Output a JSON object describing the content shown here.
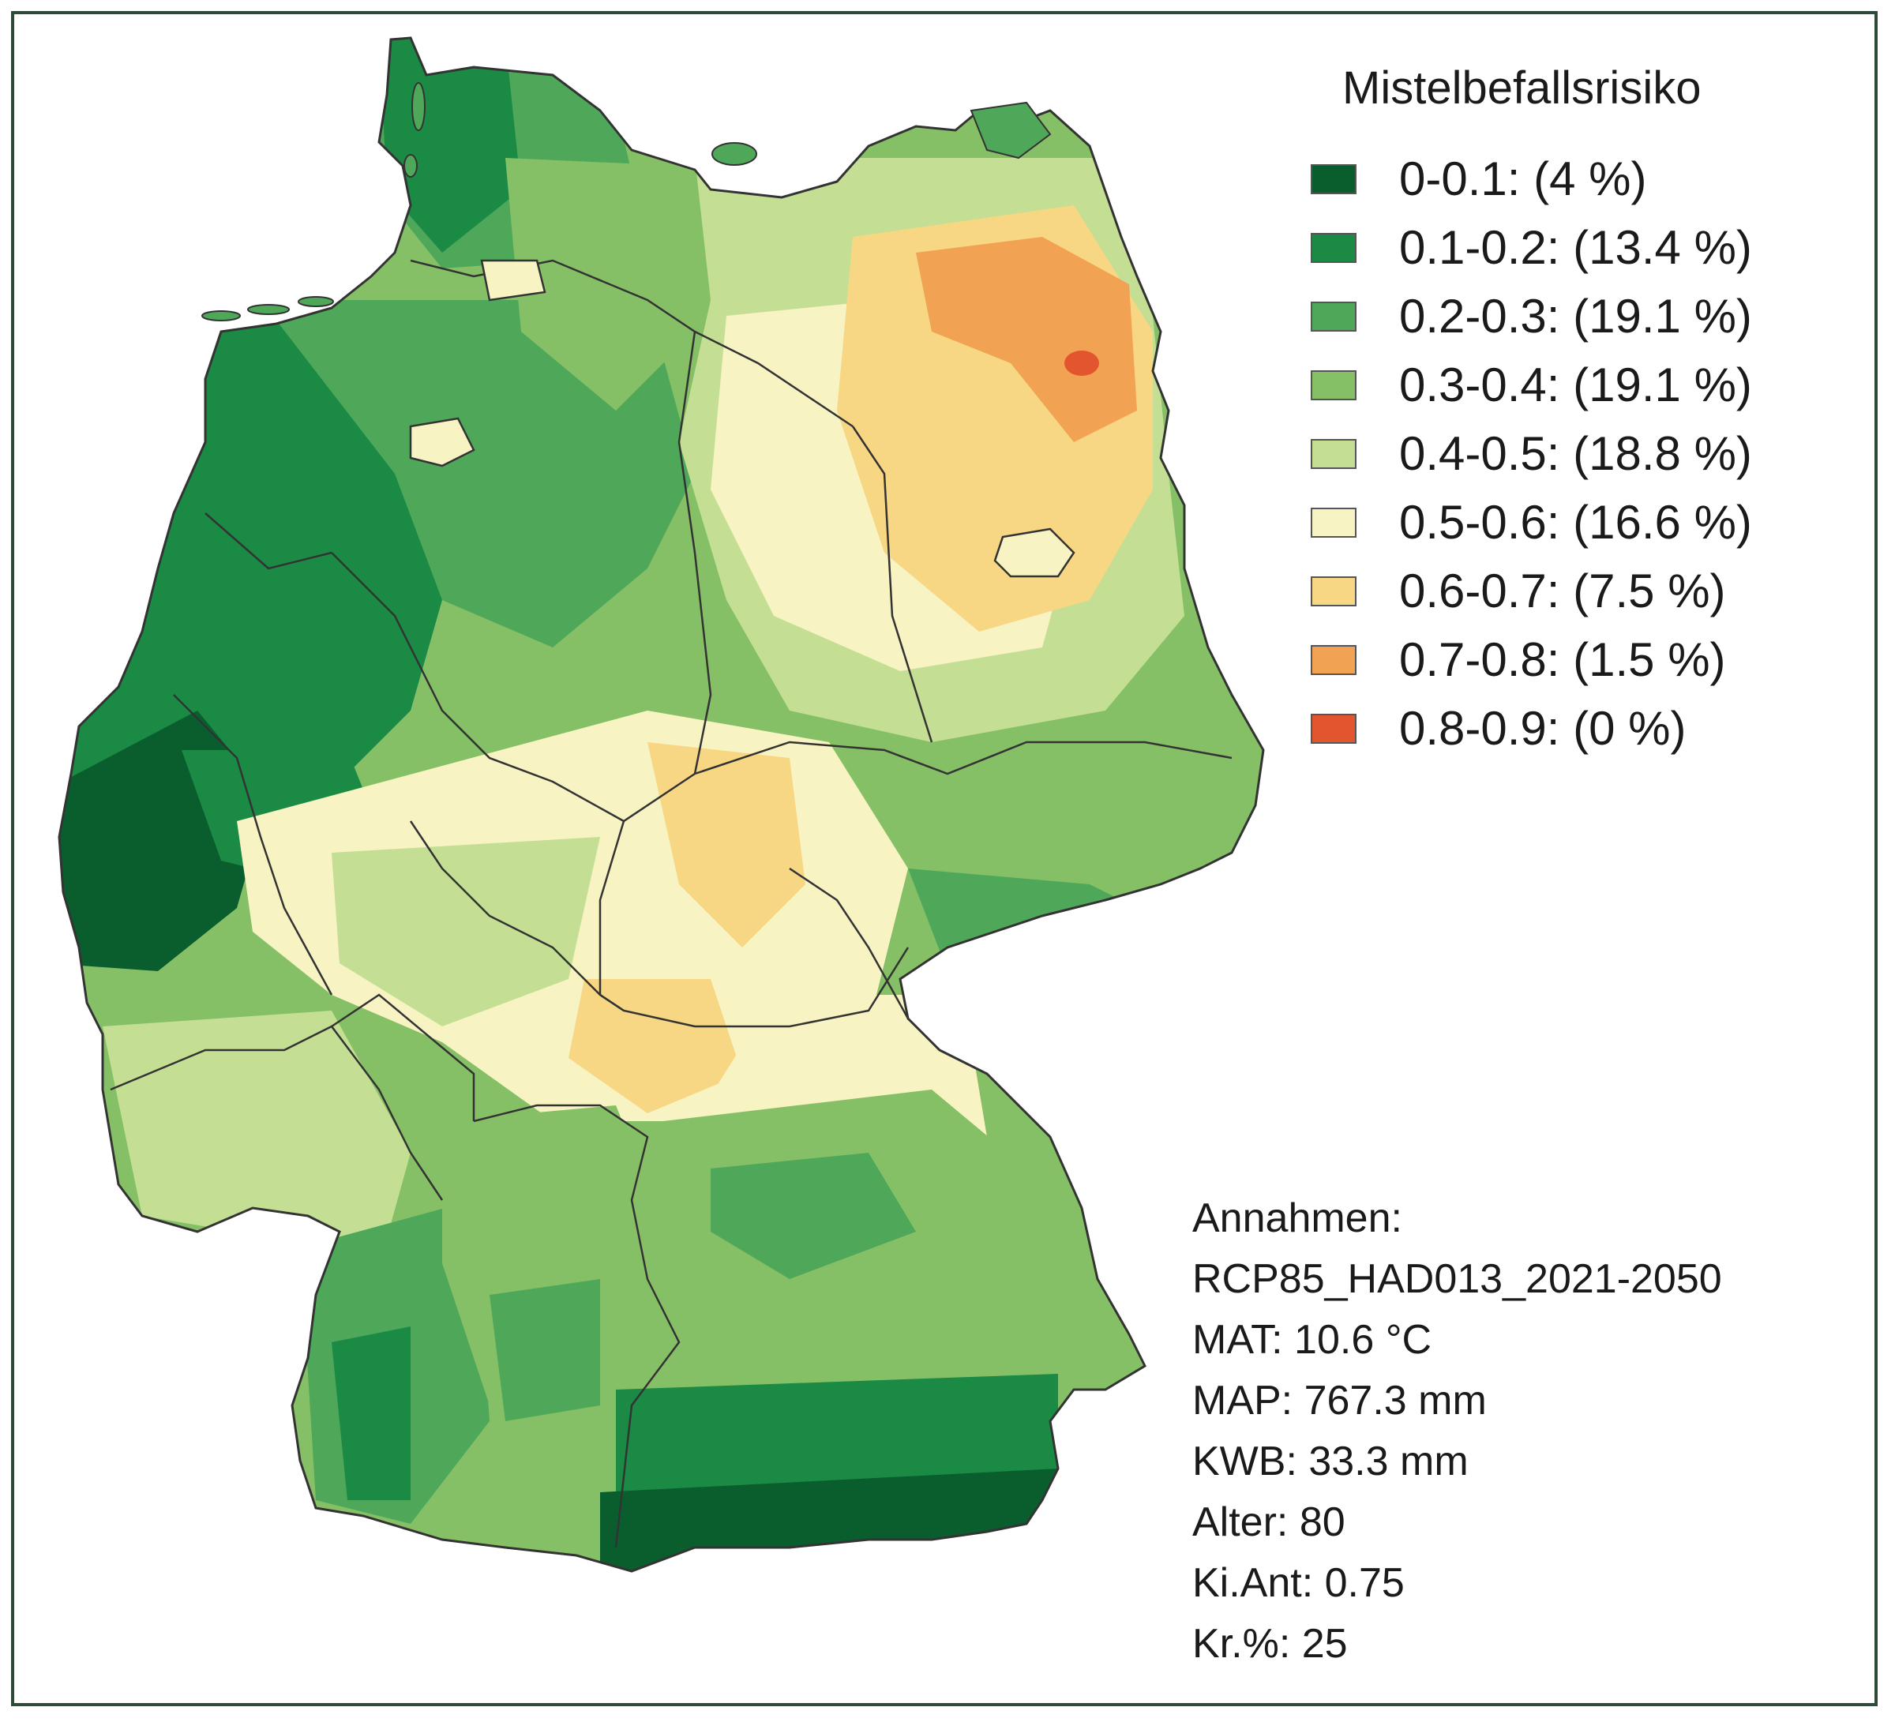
{
  "legend": {
    "title": "Mistelbefallsrisiko",
    "items": [
      {
        "label": "0-0.1: (4 %)",
        "color": "#0a5e2e"
      },
      {
        "label": "0.1-0.2: (13.4 %)",
        "color": "#1a8a45"
      },
      {
        "label": "0.2-0.3: (19.1 %)",
        "color": "#4fa85a"
      },
      {
        "label": "0.3-0.4: (19.1 %)",
        "color": "#86c066"
      },
      {
        "label": "0.4-0.5: (18.8 %)",
        "color": "#c4df94"
      },
      {
        "label": "0.5-0.6: (16.6 %)",
        "color": "#f8f3c2"
      },
      {
        "label": "0.6-0.7: (7.5 %)",
        "color": "#f8d784"
      },
      {
        "label": "0.7-0.8: (1.5 %)",
        "color": "#f1a252"
      },
      {
        "label": "0.8-0.9: (0 %)",
        "color": "#e2552e"
      }
    ]
  },
  "assumptions": [
    "Annahmen:",
    "RCP85_HAD013_2021-2050",
    "MAT: 10.6 °C",
    "MAP: 767.3 mm",
    "KWB: 33.3 mm",
    "Alter: 80",
    "Ki.Ant: 0.75",
    "Kr.%: 25"
  ]
}
